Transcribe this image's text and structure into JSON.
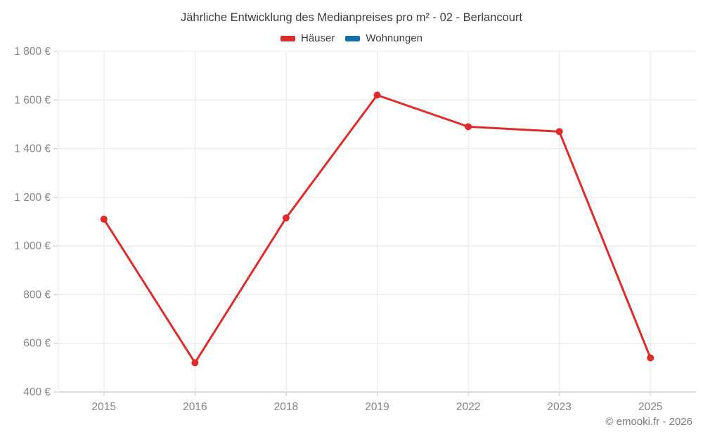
{
  "page": {
    "footer": "© emooki.fr - 2026"
  },
  "legend": {
    "items": [
      {
        "id": "hauser",
        "label": "Häuser",
        "color": "#e02b2b"
      },
      {
        "id": "wohnungen",
        "label": "Wohnungen",
        "color": "#1272a8"
      }
    ]
  },
  "chart_data": {
    "type": "line",
    "title": "Jährliche Entwicklung des Medianpreises pro m² - 02 - Berlancourt",
    "categories": [
      "2015",
      "2016",
      "2018",
      "2019",
      "2022",
      "2023",
      "2025"
    ],
    "series": [
      {
        "name": "Häuser",
        "id": "hauser",
        "color": "#e02b2b",
        "values": [
          1110,
          520,
          1115,
          1620,
          1490,
          1470,
          540
        ]
      },
      {
        "name": "Wohnungen",
        "id": "wohnungen",
        "color": "#1272a8",
        "values": []
      }
    ],
    "xlabel": "",
    "ylabel": "",
    "ylim": [
      400,
      1800
    ],
    "y_tick_values": [
      1800,
      1600,
      1400,
      1200,
      1000,
      800,
      600,
      400
    ],
    "y_tick_labels": [
      "1 800 €",
      "1 600 €",
      "1 400 €",
      "1 200 €",
      "1 000 €",
      "800 €",
      "600 €",
      "400 €"
    ],
    "grid": true,
    "legend_position": "top",
    "point_radius": 5,
    "line_width": 3
  },
  "colors": {
    "grid": "#e9e9e9",
    "axis": "#cfcfcf",
    "axis_text": "#858585",
    "title_text": "#3e3e3e",
    "background": "#ffffff"
  }
}
